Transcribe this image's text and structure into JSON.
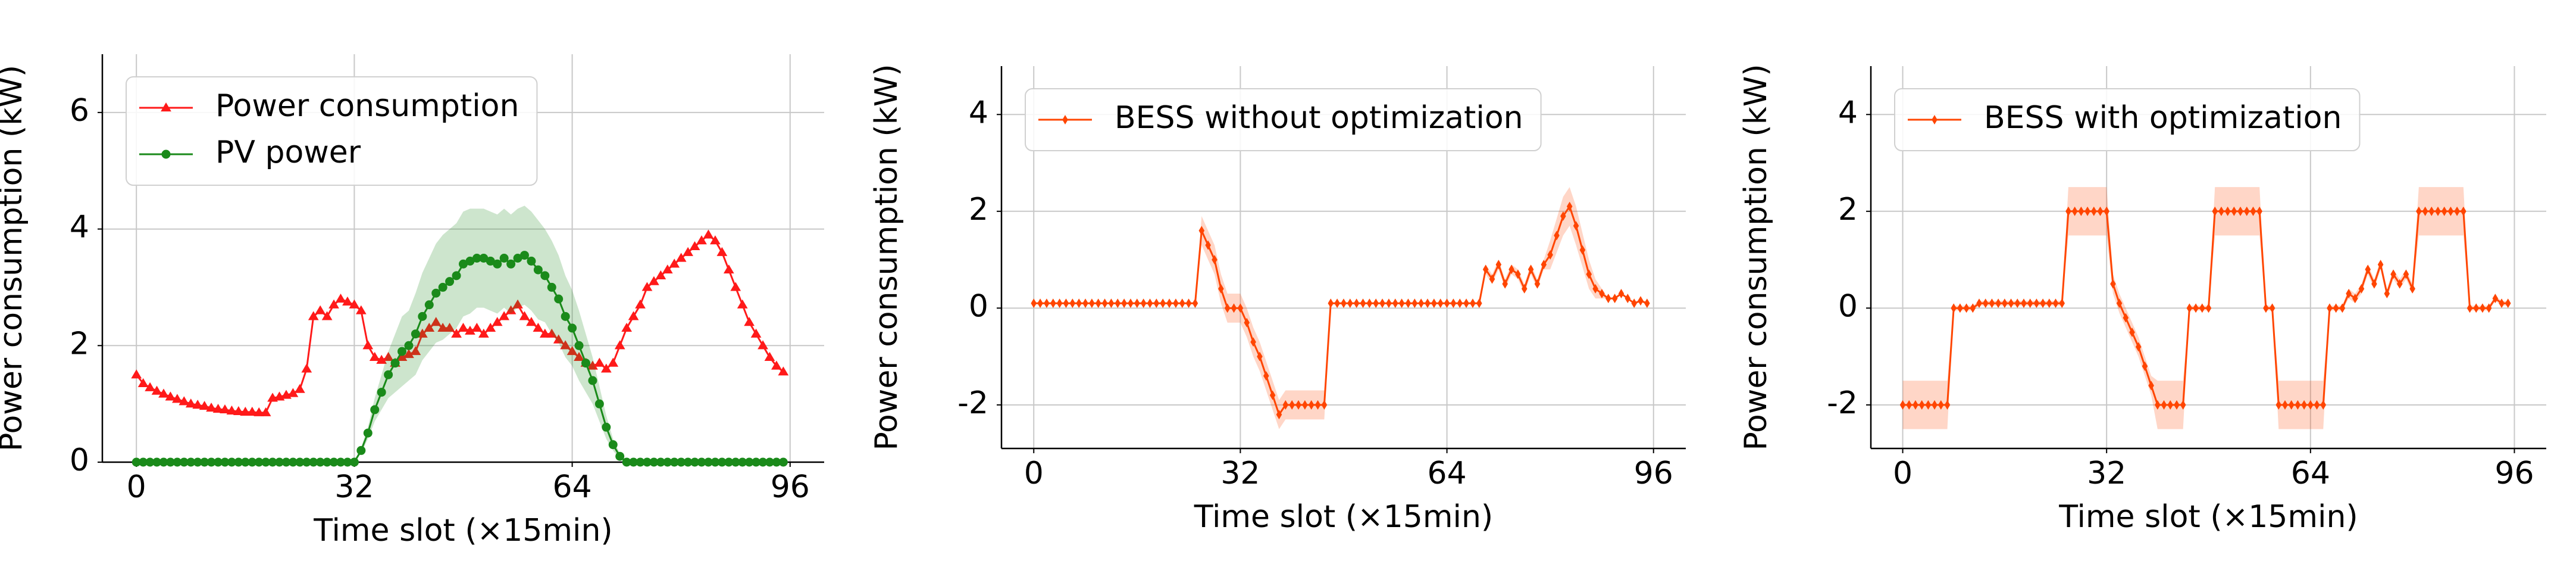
{
  "chart_data": [
    {
      "type": "line",
      "xlabel": "Time slot (×15min)",
      "ylabel": "Power consumption (kW)",
      "xlim": [
        -5,
        101
      ],
      "ylim": [
        0,
        7
      ],
      "xticks": [
        0,
        32,
        64,
        96
      ],
      "yticks": [
        0,
        2,
        4,
        6
      ],
      "grid": true,
      "legend": "upper left",
      "x": [
        0,
        1,
        2,
        3,
        4,
        5,
        6,
        7,
        8,
        9,
        10,
        11,
        12,
        13,
        14,
        15,
        16,
        17,
        18,
        19,
        20,
        21,
        22,
        23,
        24,
        25,
        26,
        27,
        28,
        29,
        30,
        31,
        32,
        33,
        34,
        35,
        36,
        37,
        38,
        39,
        40,
        41,
        42,
        43,
        44,
        45,
        46,
        47,
        48,
        49,
        50,
        51,
        52,
        53,
        54,
        55,
        56,
        57,
        58,
        59,
        60,
        61,
        62,
        63,
        64,
        65,
        66,
        67,
        68,
        69,
        70,
        71,
        72,
        73,
        74,
        75,
        76,
        77,
        78,
        79,
        80,
        81,
        82,
        83,
        84,
        85,
        86,
        87,
        88,
        89,
        90,
        91,
        92,
        93,
        94,
        95
      ],
      "series": [
        {
          "name": "Power consumption",
          "color": "#ff1a1a",
          "marker": "triangle",
          "values": [
            1.5,
            1.35,
            1.28,
            1.22,
            1.17,
            1.12,
            1.08,
            1.04,
            1.0,
            0.98,
            0.96,
            0.93,
            0.91,
            0.9,
            0.88,
            0.87,
            0.86,
            0.86,
            0.85,
            0.85,
            1.1,
            1.12,
            1.15,
            1.18,
            1.25,
            1.6,
            2.5,
            2.6,
            2.5,
            2.7,
            2.8,
            2.75,
            2.7,
            2.6,
            2.0,
            1.8,
            1.75,
            1.8,
            1.7,
            1.8,
            1.85,
            1.9,
            2.2,
            2.3,
            2.4,
            2.3,
            2.3,
            2.2,
            2.3,
            2.25,
            2.3,
            2.2,
            2.3,
            2.4,
            2.5,
            2.6,
            2.7,
            2.5,
            2.4,
            2.3,
            2.2,
            2.2,
            2.1,
            2.0,
            1.9,
            1.8,
            1.7,
            1.65,
            1.7,
            1.6,
            1.7,
            2.0,
            2.3,
            2.5,
            2.7,
            3.0,
            3.1,
            3.2,
            3.3,
            3.4,
            3.5,
            3.6,
            3.7,
            3.8,
            3.9,
            3.8,
            3.6,
            3.3,
            3.0,
            2.7,
            2.4,
            2.2,
            2.0,
            1.8,
            1.65,
            1.55
          ]
        },
        {
          "name": "PV power",
          "color": "#1a8a1a",
          "marker": "circle",
          "values": [
            0,
            0,
            0,
            0,
            0,
            0,
            0,
            0,
            0,
            0,
            0,
            0,
            0,
            0,
            0,
            0,
            0,
            0,
            0,
            0,
            0,
            0,
            0,
            0,
            0,
            0,
            0,
            0,
            0,
            0,
            0,
            0,
            0,
            0.2,
            0.5,
            0.9,
            1.2,
            1.5,
            1.7,
            1.9,
            2.0,
            2.2,
            2.5,
            2.7,
            2.9,
            3.0,
            3.1,
            3.2,
            3.4,
            3.45,
            3.5,
            3.5,
            3.45,
            3.4,
            3.5,
            3.4,
            3.5,
            3.55,
            3.45,
            3.3,
            3.2,
            3.0,
            2.8,
            2.5,
            2.3,
            2.0,
            1.7,
            1.4,
            1.0,
            0.6,
            0.3,
            0.1,
            0,
            0,
            0,
            0,
            0,
            0,
            0,
            0,
            0,
            0,
            0,
            0,
            0,
            0,
            0,
            0,
            0,
            0,
            0,
            0,
            0,
            0,
            0,
            0
          ],
          "error": [
            0,
            0,
            0,
            0,
            0,
            0,
            0,
            0,
            0,
            0,
            0,
            0,
            0,
            0,
            0,
            0,
            0,
            0,
            0,
            0,
            0,
            0,
            0,
            0,
            0,
            0,
            0,
            0,
            0,
            0,
            0,
            0,
            0,
            0.05,
            0.1,
            0.2,
            0.3,
            0.4,
            0.5,
            0.6,
            0.6,
            0.7,
            0.75,
            0.8,
            0.85,
            0.9,
            0.9,
            0.9,
            0.9,
            0.9,
            0.85,
            0.85,
            0.85,
            0.85,
            0.85,
            0.85,
            0.85,
            0.85,
            0.85,
            0.85,
            0.8,
            0.8,
            0.75,
            0.7,
            0.65,
            0.6,
            0.5,
            0.4,
            0.3,
            0.2,
            0.1,
            0.05,
            0,
            0,
            0,
            0,
            0,
            0,
            0,
            0,
            0,
            0,
            0,
            0,
            0,
            0,
            0,
            0,
            0,
            0,
            0,
            0,
            0,
            0,
            0,
            0
          ]
        }
      ]
    },
    {
      "type": "line",
      "xlabel": "Time slot (×15min)",
      "ylabel": "Power consumption (kW)",
      "xlim": [
        -5,
        101
      ],
      "ylim": [
        -2.9,
        5
      ],
      "xticks": [
        0,
        32,
        64,
        96
      ],
      "yticks": [
        -2,
        0,
        2,
        4
      ],
      "grid": true,
      "legend": "upper left",
      "x": [
        0,
        1,
        2,
        3,
        4,
        5,
        6,
        7,
        8,
        9,
        10,
        11,
        12,
        13,
        14,
        15,
        16,
        17,
        18,
        19,
        20,
        21,
        22,
        23,
        24,
        25,
        26,
        27,
        28,
        29,
        30,
        31,
        32,
        33,
        34,
        35,
        36,
        37,
        38,
        39,
        40,
        41,
        42,
        43,
        44,
        45,
        46,
        47,
        48,
        49,
        50,
        51,
        52,
        53,
        54,
        55,
        56,
        57,
        58,
        59,
        60,
        61,
        62,
        63,
        64,
        65,
        66,
        67,
        68,
        69,
        70,
        71,
        72,
        73,
        74,
        75,
        76,
        77,
        78,
        79,
        80,
        81,
        82,
        83,
        84,
        85,
        86,
        87,
        88,
        89,
        90,
        91,
        92,
        93,
        94,
        95
      ],
      "series": [
        {
          "name": "BESS without optimization",
          "color": "#ff4500",
          "marker": "diamond",
          "values": [
            0.1,
            0.1,
            0.1,
            0.1,
            0.1,
            0.1,
            0.1,
            0.1,
            0.1,
            0.1,
            0.1,
            0.1,
            0.1,
            0.1,
            0.1,
            0.1,
            0.1,
            0.1,
            0.1,
            0.1,
            0.1,
            0.1,
            0.1,
            0.1,
            0.1,
            0.1,
            1.6,
            1.3,
            1.0,
            0.4,
            0,
            0,
            0,
            -0.3,
            -0.7,
            -1.0,
            -1.4,
            -1.8,
            -2.2,
            -2,
            -2,
            -2,
            -2,
            -2,
            -2,
            -2,
            0.1,
            0.1,
            0.1,
            0.1,
            0.1,
            0.1,
            0.1,
            0.1,
            0.1,
            0.1,
            0.1,
            0.1,
            0.1,
            0.1,
            0.1,
            0.1,
            0.1,
            0.1,
            0.1,
            0.1,
            0.1,
            0.1,
            0.1,
            0.1,
            0.8,
            0.6,
            0.9,
            0.5,
            0.8,
            0.7,
            0.4,
            0.8,
            0.5,
            0.9,
            1.1,
            1.5,
            1.9,
            2.1,
            1.7,
            1.2,
            0.7,
            0.4,
            0.3,
            0.2,
            0.2,
            0.3,
            0.2,
            0.1,
            0.15,
            0.1
          ],
          "error": [
            0,
            0,
            0,
            0,
            0,
            0,
            0,
            0,
            0,
            0,
            0,
            0,
            0,
            0,
            0,
            0,
            0,
            0,
            0,
            0,
            0,
            0,
            0,
            0,
            0,
            0,
            0.3,
            0.3,
            0.3,
            0.3,
            0.3,
            0.3,
            0.3,
            0.3,
            0.3,
            0.3,
            0.3,
            0.3,
            0.3,
            0.3,
            0.3,
            0.3,
            0.3,
            0.3,
            0.3,
            0.3,
            0,
            0,
            0,
            0,
            0,
            0,
            0,
            0,
            0,
            0,
            0,
            0,
            0,
            0,
            0,
            0,
            0,
            0,
            0,
            0,
            0,
            0,
            0,
            0,
            0.1,
            0.1,
            0.1,
            0.1,
            0.1,
            0.1,
            0.1,
            0.1,
            0.1,
            0.1,
            0.3,
            0.35,
            0.4,
            0.4,
            0.4,
            0.35,
            0.3,
            0.2,
            0.1,
            0,
            0,
            0,
            0,
            0,
            0,
            0
          ]
        }
      ]
    },
    {
      "type": "line",
      "xlabel": "Time slot (×15min)",
      "ylabel": "Power consumption (kW)",
      "xlim": [
        -5,
        101
      ],
      "ylim": [
        -2.9,
        5
      ],
      "xticks": [
        0,
        32,
        64,
        96
      ],
      "yticks": [
        -2,
        0,
        2,
        4
      ],
      "grid": true,
      "legend": "upper left",
      "x": [
        0,
        1,
        2,
        3,
        4,
        5,
        6,
        7,
        8,
        9,
        10,
        11,
        12,
        13,
        14,
        15,
        16,
        17,
        18,
        19,
        20,
        21,
        22,
        23,
        24,
        25,
        26,
        27,
        28,
        29,
        30,
        31,
        32,
        33,
        34,
        35,
        36,
        37,
        38,
        39,
        40,
        41,
        42,
        43,
        44,
        45,
        46,
        47,
        48,
        49,
        50,
        51,
        52,
        53,
        54,
        55,
        56,
        57,
        58,
        59,
        60,
        61,
        62,
        63,
        64,
        65,
        66,
        67,
        68,
        69,
        70,
        71,
        72,
        73,
        74,
        75,
        76,
        77,
        78,
        79,
        80,
        81,
        82,
        83,
        84,
        85,
        86,
        87,
        88,
        89,
        90,
        91,
        92,
        93,
        94,
        95
      ],
      "series": [
        {
          "name": "BESS with optimization",
          "color": "#ff4500",
          "marker": "diamond",
          "values": [
            -2,
            -2,
            -2,
            -2,
            -2,
            -2,
            -2,
            -2,
            0,
            0,
            0,
            0,
            0.1,
            0.1,
            0.1,
            0.1,
            0.1,
            0.1,
            0.1,
            0.1,
            0.1,
            0.1,
            0.1,
            0.1,
            0.1,
            0.1,
            2,
            2,
            2,
            2,
            2,
            2,
            2,
            0.5,
            0.1,
            -0.2,
            -0.5,
            -0.8,
            -1.2,
            -1.6,
            -2,
            -2,
            -2,
            -2,
            -2,
            0,
            0,
            0,
            0,
            2,
            2,
            2,
            2,
            2,
            2,
            2,
            2,
            0,
            0,
            -2,
            -2,
            -2,
            -2,
            -2,
            -2,
            -2,
            -2,
            0,
            0,
            0,
            0.3,
            0.2,
            0.4,
            0.8,
            0.5,
            0.9,
            0.3,
            0.7,
            0.5,
            0.7,
            0.4,
            2,
            2,
            2,
            2,
            2,
            2,
            2,
            2,
            0,
            0,
            0,
            0,
            0.2,
            0.1,
            0.1
          ],
          "error": [
            0.5,
            0.5,
            0.5,
            0.5,
            0.5,
            0.5,
            0.5,
            0.5,
            0.05,
            0.05,
            0.05,
            0.05,
            0.05,
            0.05,
            0.05,
            0.05,
            0.05,
            0.05,
            0.05,
            0.05,
            0.05,
            0.05,
            0.05,
            0.05,
            0.05,
            0.05,
            0.5,
            0.5,
            0.5,
            0.5,
            0.5,
            0.5,
            0.5,
            0.2,
            0.2,
            0.2,
            0.2,
            0.2,
            0.2,
            0.2,
            0.5,
            0.5,
            0.5,
            0.5,
            0.5,
            0.05,
            0.05,
            0.05,
            0.05,
            0.5,
            0.5,
            0.5,
            0.5,
            0.5,
            0.5,
            0.5,
            0.5,
            0.05,
            0.05,
            0.5,
            0.5,
            0.5,
            0.5,
            0.5,
            0.5,
            0.5,
            0.5,
            0.05,
            0.05,
            0.05,
            0.1,
            0.1,
            0.1,
            0.1,
            0.1,
            0.1,
            0.1,
            0.1,
            0.1,
            0.1,
            0.1,
            0.5,
            0.5,
            0.5,
            0.5,
            0.5,
            0.5,
            0.5,
            0.5,
            0.05,
            0.05,
            0.05,
            0.05,
            0.05,
            0.05,
            0.05
          ]
        }
      ]
    }
  ]
}
